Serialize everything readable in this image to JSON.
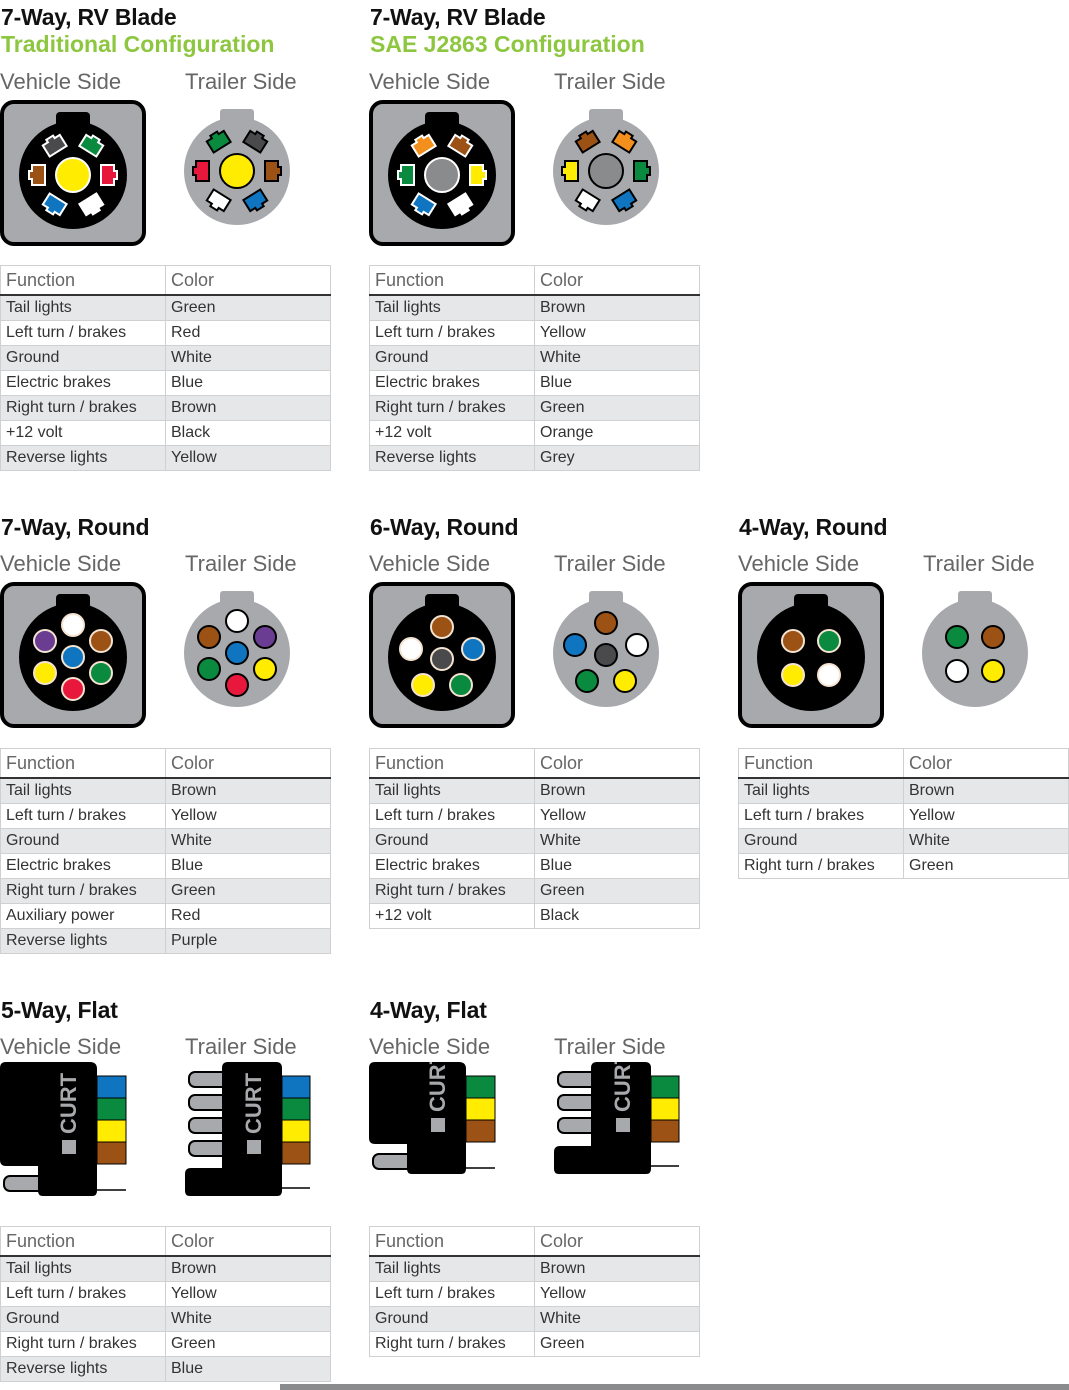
{
  "colors": {
    "accent_green": "#8dc63f",
    "connector_gray": "#a7a9ac",
    "pin": {
      "Green": "#0a8a3e",
      "Red": "#e8173c",
      "White": "#ffffff",
      "Blue": "#0f75c0",
      "Brown": "#9c5215",
      "Black": "#4a4a4c",
      "Yellow": "#ffec00",
      "Orange": "#f3901d",
      "Grey": "#8a8b8d",
      "Purple": "#6a3d93",
      "DarkGrey": "#4a4a4c"
    }
  },
  "labels": {
    "vehicle": "Vehicle Side",
    "trailer": "Trailer Side",
    "function_header": "Function",
    "color_header": "Color"
  },
  "panels": [
    {
      "id": "7-way-rv-blade-traditional",
      "title": "7-Way, RV Blade",
      "subtitle": "Traditional Configuration",
      "type": "blade",
      "vehicle_pins": {
        "tl": "DarkGrey",
        "tr": "Green",
        "l": "Brown",
        "r": "Red",
        "bl": "Blue",
        "br": "White",
        "c": "Yellow"
      },
      "trailer_pins": {
        "tl": "Green",
        "tr": "DarkGrey",
        "l": "Red",
        "r": "Brown",
        "bl": "White",
        "br": "Blue",
        "c": "Yellow"
      },
      "rows": [
        [
          "Tail lights",
          "Green"
        ],
        [
          "Left turn / brakes",
          "Red"
        ],
        [
          "Ground",
          "White"
        ],
        [
          "Electric brakes",
          "Blue"
        ],
        [
          "Right turn / brakes",
          "Brown"
        ],
        [
          "+12 volt",
          "Black"
        ],
        [
          "Reverse lights",
          "Yellow"
        ]
      ]
    },
    {
      "id": "7-way-rv-blade-sae",
      "title": "7-Way, RV Blade",
      "subtitle": "SAE J2863 Configuration",
      "type": "blade",
      "vehicle_pins": {
        "tl": "Orange",
        "tr": "Brown",
        "l": "Green",
        "r": "Yellow",
        "bl": "Blue",
        "br": "White",
        "c": "Grey"
      },
      "trailer_pins": {
        "tl": "Brown",
        "tr": "Orange",
        "l": "Yellow",
        "r": "Green",
        "bl": "White",
        "br": "Blue",
        "c": "Grey"
      },
      "rows": [
        [
          "Tail lights",
          "Brown"
        ],
        [
          "Left turn / brakes",
          "Yellow"
        ],
        [
          "Ground",
          "White"
        ],
        [
          "Electric brakes",
          "Blue"
        ],
        [
          "Right turn / brakes",
          "Green"
        ],
        [
          "+12 volt",
          "Orange"
        ],
        [
          "Reverse lights",
          "Grey"
        ]
      ]
    },
    {
      "id": "7-way-round",
      "title": "7-Way, Round",
      "subtitle": "",
      "type": "round7",
      "vehicle_pins": [
        "White",
        "Purple",
        "Brown",
        "Blue",
        "Yellow",
        "Green",
        "Red"
      ],
      "trailer_pins": [
        "White",
        "Brown",
        "Purple",
        "Blue",
        "Green",
        "Yellow",
        "Red"
      ],
      "rows": [
        [
          "Tail lights",
          "Brown"
        ],
        [
          "Left turn / brakes",
          "Yellow"
        ],
        [
          "Ground",
          "White"
        ],
        [
          "Electric brakes",
          "Blue"
        ],
        [
          "Right turn / brakes",
          "Green"
        ],
        [
          "Auxiliary power",
          "Red"
        ],
        [
          "Reverse lights",
          "Purple"
        ]
      ]
    },
    {
      "id": "6-way-round",
      "title": "6-Way, Round",
      "subtitle": "",
      "type": "round6",
      "vehicle_pins": [
        "Brown",
        "White",
        "Blue",
        "DarkGrey",
        "Yellow",
        "Green"
      ],
      "trailer_pins": [
        "Brown",
        "Blue",
        "White",
        "DarkGrey",
        "Green",
        "Yellow"
      ],
      "rows": [
        [
          "Tail lights",
          "Brown"
        ],
        [
          "Left turn / brakes",
          "Yellow"
        ],
        [
          "Ground",
          "White"
        ],
        [
          "Electric brakes",
          "Blue"
        ],
        [
          "Right turn / brakes",
          "Green"
        ],
        [
          "+12 volt",
          "Black"
        ]
      ]
    },
    {
      "id": "4-way-round",
      "title": "4-Way, Round",
      "subtitle": "",
      "type": "round4",
      "vehicle_pins": [
        "Brown",
        "Green",
        "Yellow",
        "White"
      ],
      "trailer_pins": [
        "Green",
        "Brown",
        "White",
        "Yellow"
      ],
      "rows": [
        [
          "Tail lights",
          "Brown"
        ],
        [
          "Left turn / brakes",
          "Yellow"
        ],
        [
          "Ground",
          "White"
        ],
        [
          "Right turn / brakes",
          "Green"
        ]
      ]
    },
    {
      "id": "5-way-flat",
      "title": "5-Way, Flat",
      "subtitle": "",
      "type": "flat5",
      "wires": [
        "Blue",
        "Green",
        "Yellow",
        "Brown",
        "White"
      ],
      "rows": [
        [
          "Tail lights",
          "Brown"
        ],
        [
          "Left turn / brakes",
          "Yellow"
        ],
        [
          "Ground",
          "White"
        ],
        [
          "Right turn / brakes",
          "Green"
        ],
        [
          "Reverse lights",
          "Blue"
        ]
      ]
    },
    {
      "id": "4-way-flat",
      "title": "4-Way, Flat",
      "subtitle": "",
      "type": "flat4",
      "wires": [
        "Green",
        "Yellow",
        "Brown",
        "White"
      ],
      "rows": [
        [
          "Tail lights",
          "Brown"
        ],
        [
          "Left turn / brakes",
          "Yellow"
        ],
        [
          "Ground",
          "White"
        ],
        [
          "Right turn / brakes",
          "Green"
        ]
      ]
    }
  ],
  "logo_text": "CURT"
}
